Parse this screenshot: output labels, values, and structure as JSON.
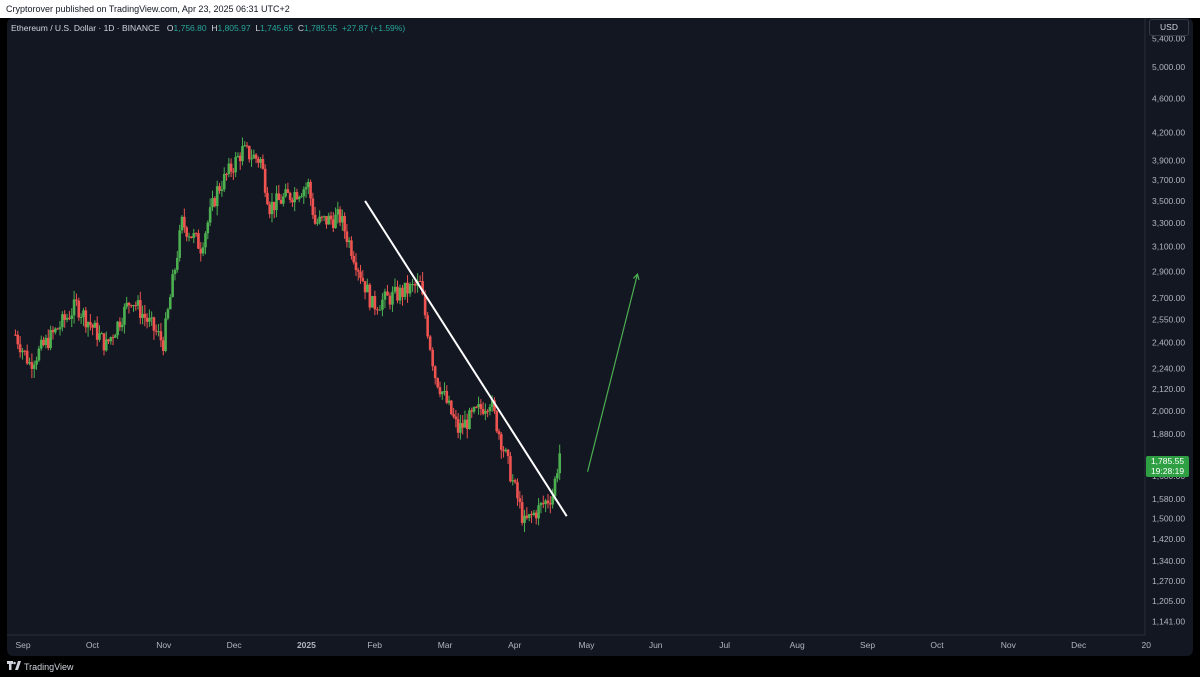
{
  "header": {
    "published": "Cryptorover published on TradingView.com, Apr 23, 2025 06:31 UTC+2"
  },
  "legend": {
    "symbol": "Ethereum / U.S. Dollar · 1D · BINANCE",
    "o_label": "O",
    "o_value": "1,756.80",
    "h_label": "H",
    "h_value": "1,805.97",
    "l_label": "L",
    "l_value": "1,745.65",
    "c_label": "C",
    "c_value": "1,785.55",
    "change": "+27.87 (+1.59%)"
  },
  "currency": "USD",
  "price_tag": {
    "price": "1,785.55",
    "countdown": "19:28:19"
  },
  "footer": {
    "brand": "TradingView"
  },
  "colors": {
    "background": "#131722",
    "up": "#26a69a",
    "up_bar": "#4caf50",
    "down": "#ef5350",
    "trendline": "#ffffff",
    "arrow": "#4caf50",
    "tag": "#2ea043"
  },
  "chart_data": {
    "type": "candlestick",
    "title": "Ethereum / U.S. Dollar · 1D · BINANCE",
    "y_scale": "log",
    "ylim": [
      1100,
      5700
    ],
    "y_ticks": [
      {
        "v": 5400,
        "t": "5,400.00"
      },
      {
        "v": 5000,
        "t": "5,000.00"
      },
      {
        "v": 4600,
        "t": "4,600.00"
      },
      {
        "v": 4200,
        "t": "4,200.00"
      },
      {
        "v": 3900,
        "t": "3,900.00"
      },
      {
        "v": 3700,
        "t": "3,700.00"
      },
      {
        "v": 3500,
        "t": "3,500.00"
      },
      {
        "v": 3300,
        "t": "3,300.00"
      },
      {
        "v": 3100,
        "t": "3,100.00"
      },
      {
        "v": 2900,
        "t": "2,900.00"
      },
      {
        "v": 2700,
        "t": "2,700.00"
      },
      {
        "v": 2550,
        "t": "2,550.00"
      },
      {
        "v": 2400,
        "t": "2,400.00"
      },
      {
        "v": 2240,
        "t": "2,240.00"
      },
      {
        "v": 2120,
        "t": "2,120.00"
      },
      {
        "v": 2000,
        "t": "2,000.00"
      },
      {
        "v": 1880,
        "t": "1,880.00"
      },
      {
        "v": 1680,
        "t": "1,680.00"
      },
      {
        "v": 1580,
        "t": "1,580.00"
      },
      {
        "v": 1500,
        "t": "1,500.00"
      },
      {
        "v": 1420,
        "t": "1,420.00"
      },
      {
        "v": 1340,
        "t": "1,340.00"
      },
      {
        "v": 1270,
        "t": "1,270.00"
      },
      {
        "v": 1205,
        "t": "1,205.00"
      },
      {
        "v": 1141,
        "t": "1,141.00"
      }
    ],
    "x_ticks": [
      {
        "m": 0,
        "t": "Sep",
        "bold": false
      },
      {
        "m": 1,
        "t": "Oct",
        "bold": false
      },
      {
        "m": 2,
        "t": "Nov",
        "bold": false
      },
      {
        "m": 3,
        "t": "Dec",
        "bold": false
      },
      {
        "m": 4,
        "t": "2025",
        "bold": true
      },
      {
        "m": 5,
        "t": "Feb",
        "bold": false
      },
      {
        "m": 6,
        "t": "Mar",
        "bold": false
      },
      {
        "m": 7,
        "t": "Apr",
        "bold": false
      },
      {
        "m": 8,
        "t": "May",
        "bold": false
      },
      {
        "m": 9,
        "t": "Jun",
        "bold": false
      },
      {
        "m": 10,
        "t": "Jul",
        "bold": false
      },
      {
        "m": 11,
        "t": "Aug",
        "bold": false
      },
      {
        "m": 12,
        "t": "Sep",
        "bold": false
      },
      {
        "m": 13,
        "t": "Oct",
        "bold": false
      },
      {
        "m": 14,
        "t": "Nov",
        "bold": false
      },
      {
        "m": 15,
        "t": "Dec",
        "bold": false
      },
      {
        "m": 16,
        "t": "20",
        "bold": false
      }
    ],
    "x_range_months": [
      -0.12,
      16.05
    ],
    "key_points": [
      {
        "date": "2024-09-01",
        "close": 2450
      },
      {
        "date": "2024-09-07",
        "close": 2270
      },
      {
        "date": "2024-09-27",
        "close": 2650
      },
      {
        "date": "2024-10-10",
        "close": 2380
      },
      {
        "date": "2024-10-21",
        "close": 2700
      },
      {
        "date": "2024-11-04",
        "close": 2400
      },
      {
        "date": "2024-11-12",
        "close": 3300
      },
      {
        "date": "2024-11-20",
        "close": 3100
      },
      {
        "date": "2024-11-27",
        "close": 3600
      },
      {
        "date": "2024-12-08",
        "close": 4000
      },
      {
        "date": "2024-12-16",
        "close": 3900
      },
      {
        "date": "2024-12-20",
        "close": 3450
      },
      {
        "date": "2025-01-06",
        "close": 3650
      },
      {
        "date": "2025-01-09",
        "close": 3300
      },
      {
        "date": "2025-01-20",
        "close": 3350
      },
      {
        "date": "2025-02-03",
        "close": 2650
      },
      {
        "date": "2025-02-22",
        "close": 2800
      },
      {
        "date": "2025-02-28",
        "close": 2200
      },
      {
        "date": "2025-03-10",
        "close": 1900
      },
      {
        "date": "2025-03-24",
        "close": 2060
      },
      {
        "date": "2025-04-08",
        "close": 1480
      },
      {
        "date": "2025-04-20",
        "close": 1600
      },
      {
        "date": "2025-04-23",
        "close": 1785.55
      }
    ],
    "trendline": {
      "start": {
        "date": "2025-01-31",
        "price": 3500
      },
      "end": {
        "date": "2025-04-26",
        "price": 1510
      }
    },
    "arrow": {
      "start": {
        "date": "2025-05-05",
        "price": 1700
      },
      "end": {
        "date": "2025-05-27",
        "price": 2880
      }
    }
  }
}
